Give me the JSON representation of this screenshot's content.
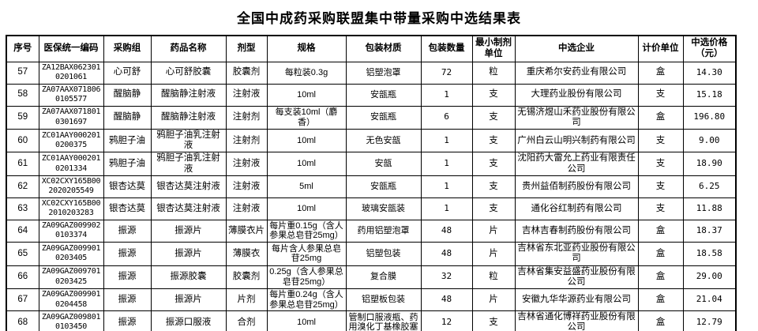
{
  "title": "全国中成药采购联盟集中带量采购中选结果表",
  "table": {
    "columns": [
      {
        "key": "seq",
        "label": "序号"
      },
      {
        "key": "code",
        "label": "医保统一编码"
      },
      {
        "key": "group",
        "label": "采购组"
      },
      {
        "key": "drug",
        "label": "药品名称"
      },
      {
        "key": "form",
        "label": "剂型"
      },
      {
        "key": "spec",
        "label": "规格"
      },
      {
        "key": "material",
        "label": "包装材质"
      },
      {
        "key": "qty",
        "label": "包装数量"
      },
      {
        "key": "min_unit",
        "label": "最小制剂单位"
      },
      {
        "key": "company",
        "label": "中选企业"
      },
      {
        "key": "price_unit",
        "label": "计价单位"
      },
      {
        "key": "price",
        "label": "中选价格（元）"
      }
    ],
    "rows": [
      {
        "seq": "57",
        "code": "ZA12BAX0623010201061",
        "group": "心可舒",
        "drug": "心可舒胶囊",
        "form": "胶囊剂",
        "spec": "每粒装0.3g",
        "material": "铝塑泡罩",
        "qty": "72",
        "min_unit": "粒",
        "company": "重庆希尔安药业有限公司",
        "price_unit": "盒",
        "price": "14.30"
      },
      {
        "seq": "58",
        "code": "ZA07AAX0718060105577",
        "group": "醒脑静",
        "drug": "醒脑静注射液",
        "form": "注射液",
        "spec": "10ml",
        "material": "安瓿瓶",
        "qty": "1",
        "min_unit": "支",
        "company": "大理药业股份有限公司",
        "price_unit": "支",
        "price": "15.18"
      },
      {
        "seq": "59",
        "code": "ZA07AAX0718010301697",
        "group": "醒脑静",
        "drug": "醒脑静注射液",
        "form": "注射剂",
        "spec": "每支装10ml（麝香）",
        "material": "安瓿瓶",
        "qty": "6",
        "min_unit": "支",
        "company": "无锡济煜山禾药业股份有限公司",
        "price_unit": "盒",
        "price": "196.80"
      },
      {
        "seq": "60",
        "code": "ZC01AAY0002010200375",
        "group": "鸦胆子油",
        "drug": "鸦胆子油乳注射液",
        "form": "注射剂",
        "spec": "10ml",
        "material": "无色安瓿",
        "qty": "1",
        "min_unit": "支",
        "company": "广州白云山明兴制药有限公司",
        "price_unit": "支",
        "price": "9.00"
      },
      {
        "seq": "61",
        "code": "ZC01AAY0002010201334",
        "group": "鸦胆子油",
        "drug": "鸦胆子油乳注射液",
        "form": "注射液",
        "spec": "10ml",
        "material": "安瓿",
        "qty": "1",
        "min_unit": "支",
        "company": "沈阳药大雷允上药业有限责任公司",
        "price_unit": "支",
        "price": "18.90"
      },
      {
        "seq": "62",
        "code": "XC02CXY165B002020205549",
        "group": "银杏达莫",
        "drug": "银杏达莫注射液",
        "form": "注射液",
        "spec": "5ml",
        "material": "安瓿瓶",
        "qty": "1",
        "min_unit": "支",
        "company": "贵州益佰制药股份有限公司",
        "price_unit": "支",
        "price": "6.25"
      },
      {
        "seq": "63",
        "code": "XC02CXY165B002010203283",
        "group": "银杏达莫",
        "drug": "银杏达莫注射液",
        "form": "注射液",
        "spec": "10ml",
        "material": "玻璃安瓿装",
        "qty": "1",
        "min_unit": "支",
        "company": "通化谷红制药有限公司",
        "price_unit": "支",
        "price": "11.88"
      },
      {
        "seq": "64",
        "code": "ZA09GAZ0099020103374",
        "group": "振源",
        "drug": "振源片",
        "form": "薄膜衣片",
        "spec": "每片重0.15g（含人参果总皂苷25mg）",
        "material": "药用铝塑泡罩",
        "qty": "48",
        "min_unit": "片",
        "company": "吉林吉春制药股份有限公司",
        "price_unit": "盒",
        "price": "18.37"
      },
      {
        "seq": "65",
        "code": "ZA09GAZ0099010203405",
        "group": "振源",
        "drug": "振源片",
        "form": "薄膜衣",
        "spec": "每片含人参果总皂苷25mg",
        "material": "铝塑包装",
        "qty": "48",
        "min_unit": "片",
        "company": "吉林省东北亚药业股份有限公司",
        "price_unit": "盒",
        "price": "18.58"
      },
      {
        "seq": "66",
        "code": "ZA09GAZ0097010203425",
        "group": "振源",
        "drug": "振源胶囊",
        "form": "胶囊剂",
        "spec": "0.25g（含人参果总皂苷25mg）",
        "material": "复合膜",
        "qty": "32",
        "min_unit": "粒",
        "company": "吉林省集安益盛药业股份有限公司",
        "price_unit": "盒",
        "price": "29.00"
      },
      {
        "seq": "67",
        "code": "ZA09GAZ0099010204458",
        "group": "振源",
        "drug": "振源片",
        "form": "片剂",
        "spec": "每片重0.24g（含人参果总皂苷25mg）",
        "material": "铝塑板包装",
        "qty": "48",
        "min_unit": "片",
        "company": "安徽九华华源药业有限公司",
        "price_unit": "盒",
        "price": "21.04"
      },
      {
        "seq": "68",
        "code": "ZA09GAZ0098010103450",
        "group": "振源",
        "drug": "振源口服液",
        "form": "合剂",
        "spec": "10ml",
        "material": "管制口服液瓶、药用溴化丁基橡胶塞",
        "qty": "12",
        "min_unit": "支",
        "company": "吉林省通化博祥药业股份有限公司",
        "price_unit": "盒",
        "price": "12.79"
      }
    ]
  }
}
